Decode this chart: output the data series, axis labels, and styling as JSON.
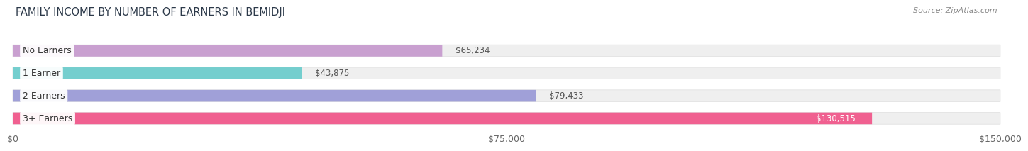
{
  "title": "FAMILY INCOME BY NUMBER OF EARNERS IN BEMIDJI",
  "source": "Source: ZipAtlas.com",
  "categories": [
    "No Earners",
    "1 Earner",
    "2 Earners",
    "3+ Earners"
  ],
  "values": [
    65234,
    43875,
    79433,
    130515
  ],
  "bar_colors": [
    "#c9a0d0",
    "#74cece",
    "#a0a0d8",
    "#f06090"
  ],
  "bar_bg_color": "#efefef",
  "value_labels": [
    "$65,234",
    "$43,875",
    "$79,433",
    "$130,515"
  ],
  "xlim": [
    0,
    150000
  ],
  "xtick_values": [
    0,
    75000,
    150000
  ],
  "xtick_labels": [
    "$0",
    "$75,000",
    "$150,000"
  ],
  "background_color": "#ffffff",
  "title_fontsize": 10.5,
  "label_fontsize": 9,
  "value_fontsize": 8.5,
  "source_fontsize": 8
}
